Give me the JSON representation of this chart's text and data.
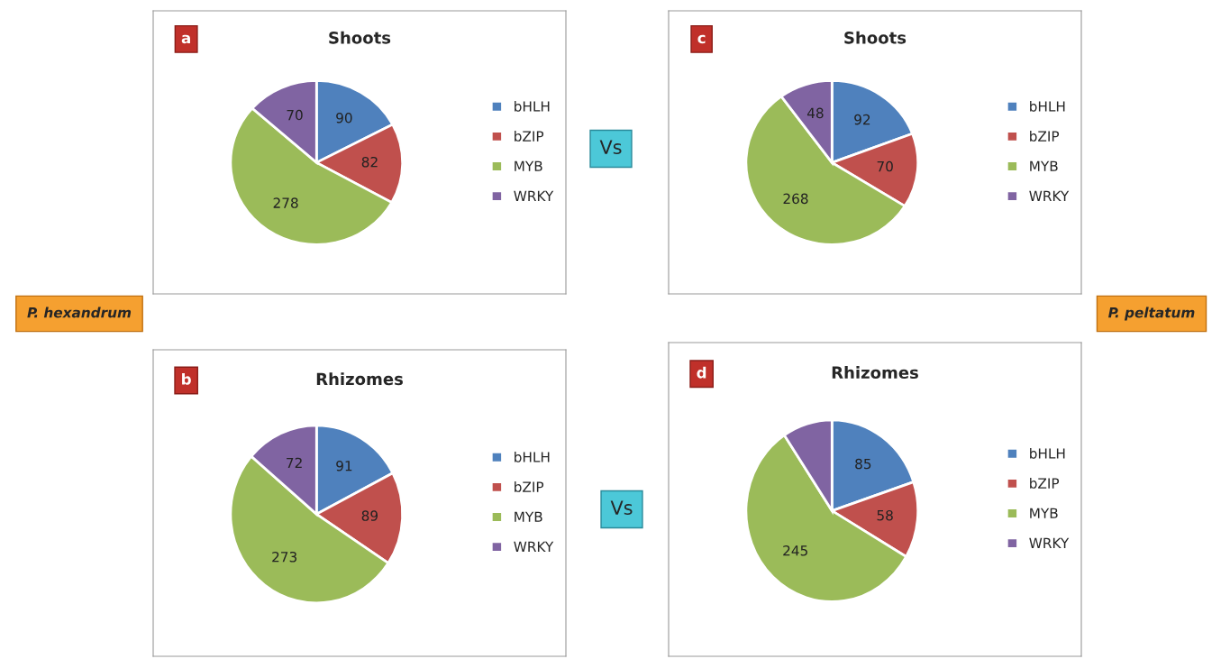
{
  "chart_data": [
    {
      "type": "pie",
      "title": "Shoots",
      "categories": [
        "bHLH",
        "bZIP",
        "MYB",
        "WRKY"
      ],
      "values": [
        90,
        82,
        278,
        70
      ],
      "colors": [
        "#4f81bd",
        "#c0504d",
        "#9bbb59",
        "#8064a2"
      ],
      "data_labels": true,
      "legend": "right",
      "annotations": [
        "a",
        "P. hexandrum",
        "Vs"
      ]
    },
    {
      "type": "pie",
      "title": "Rhizomes",
      "categories": [
        "bHLH",
        "bZIP",
        "MYB",
        "WRKY"
      ],
      "values": [
        91,
        89,
        273,
        72
      ],
      "colors": [
        "#4f81bd",
        "#c0504d",
        "#9bbb59",
        "#8064a2"
      ],
      "data_labels": true,
      "legend": "right",
      "annotations": [
        "b",
        "Vs"
      ]
    },
    {
      "type": "pie",
      "title": "Shoots",
      "categories": [
        "bHLH",
        "bZIP",
        "MYB",
        "WRKY"
      ],
      "values": [
        92,
        70,
        268,
        48
      ],
      "colors": [
        "#4f81bd",
        "#c0504d",
        "#9bbb59",
        "#8064a2"
      ],
      "data_labels": true,
      "legend": "right",
      "annotations": [
        "c",
        "P. peltatum"
      ]
    },
    {
      "type": "pie",
      "title": "Rhizomes",
      "categories": [
        "bHLH",
        "bZIP",
        "MYB",
        "WRKY"
      ],
      "values": [
        85,
        58,
        245,
        40
      ],
      "colors": [
        "#4f81bd",
        "#c0504d",
        "#9bbb59",
        "#8064a2"
      ],
      "value_labels": [
        "85",
        "58",
        "245",
        null
      ],
      "legend": "right",
      "annotations": [
        "d"
      ]
    }
  ]
}
